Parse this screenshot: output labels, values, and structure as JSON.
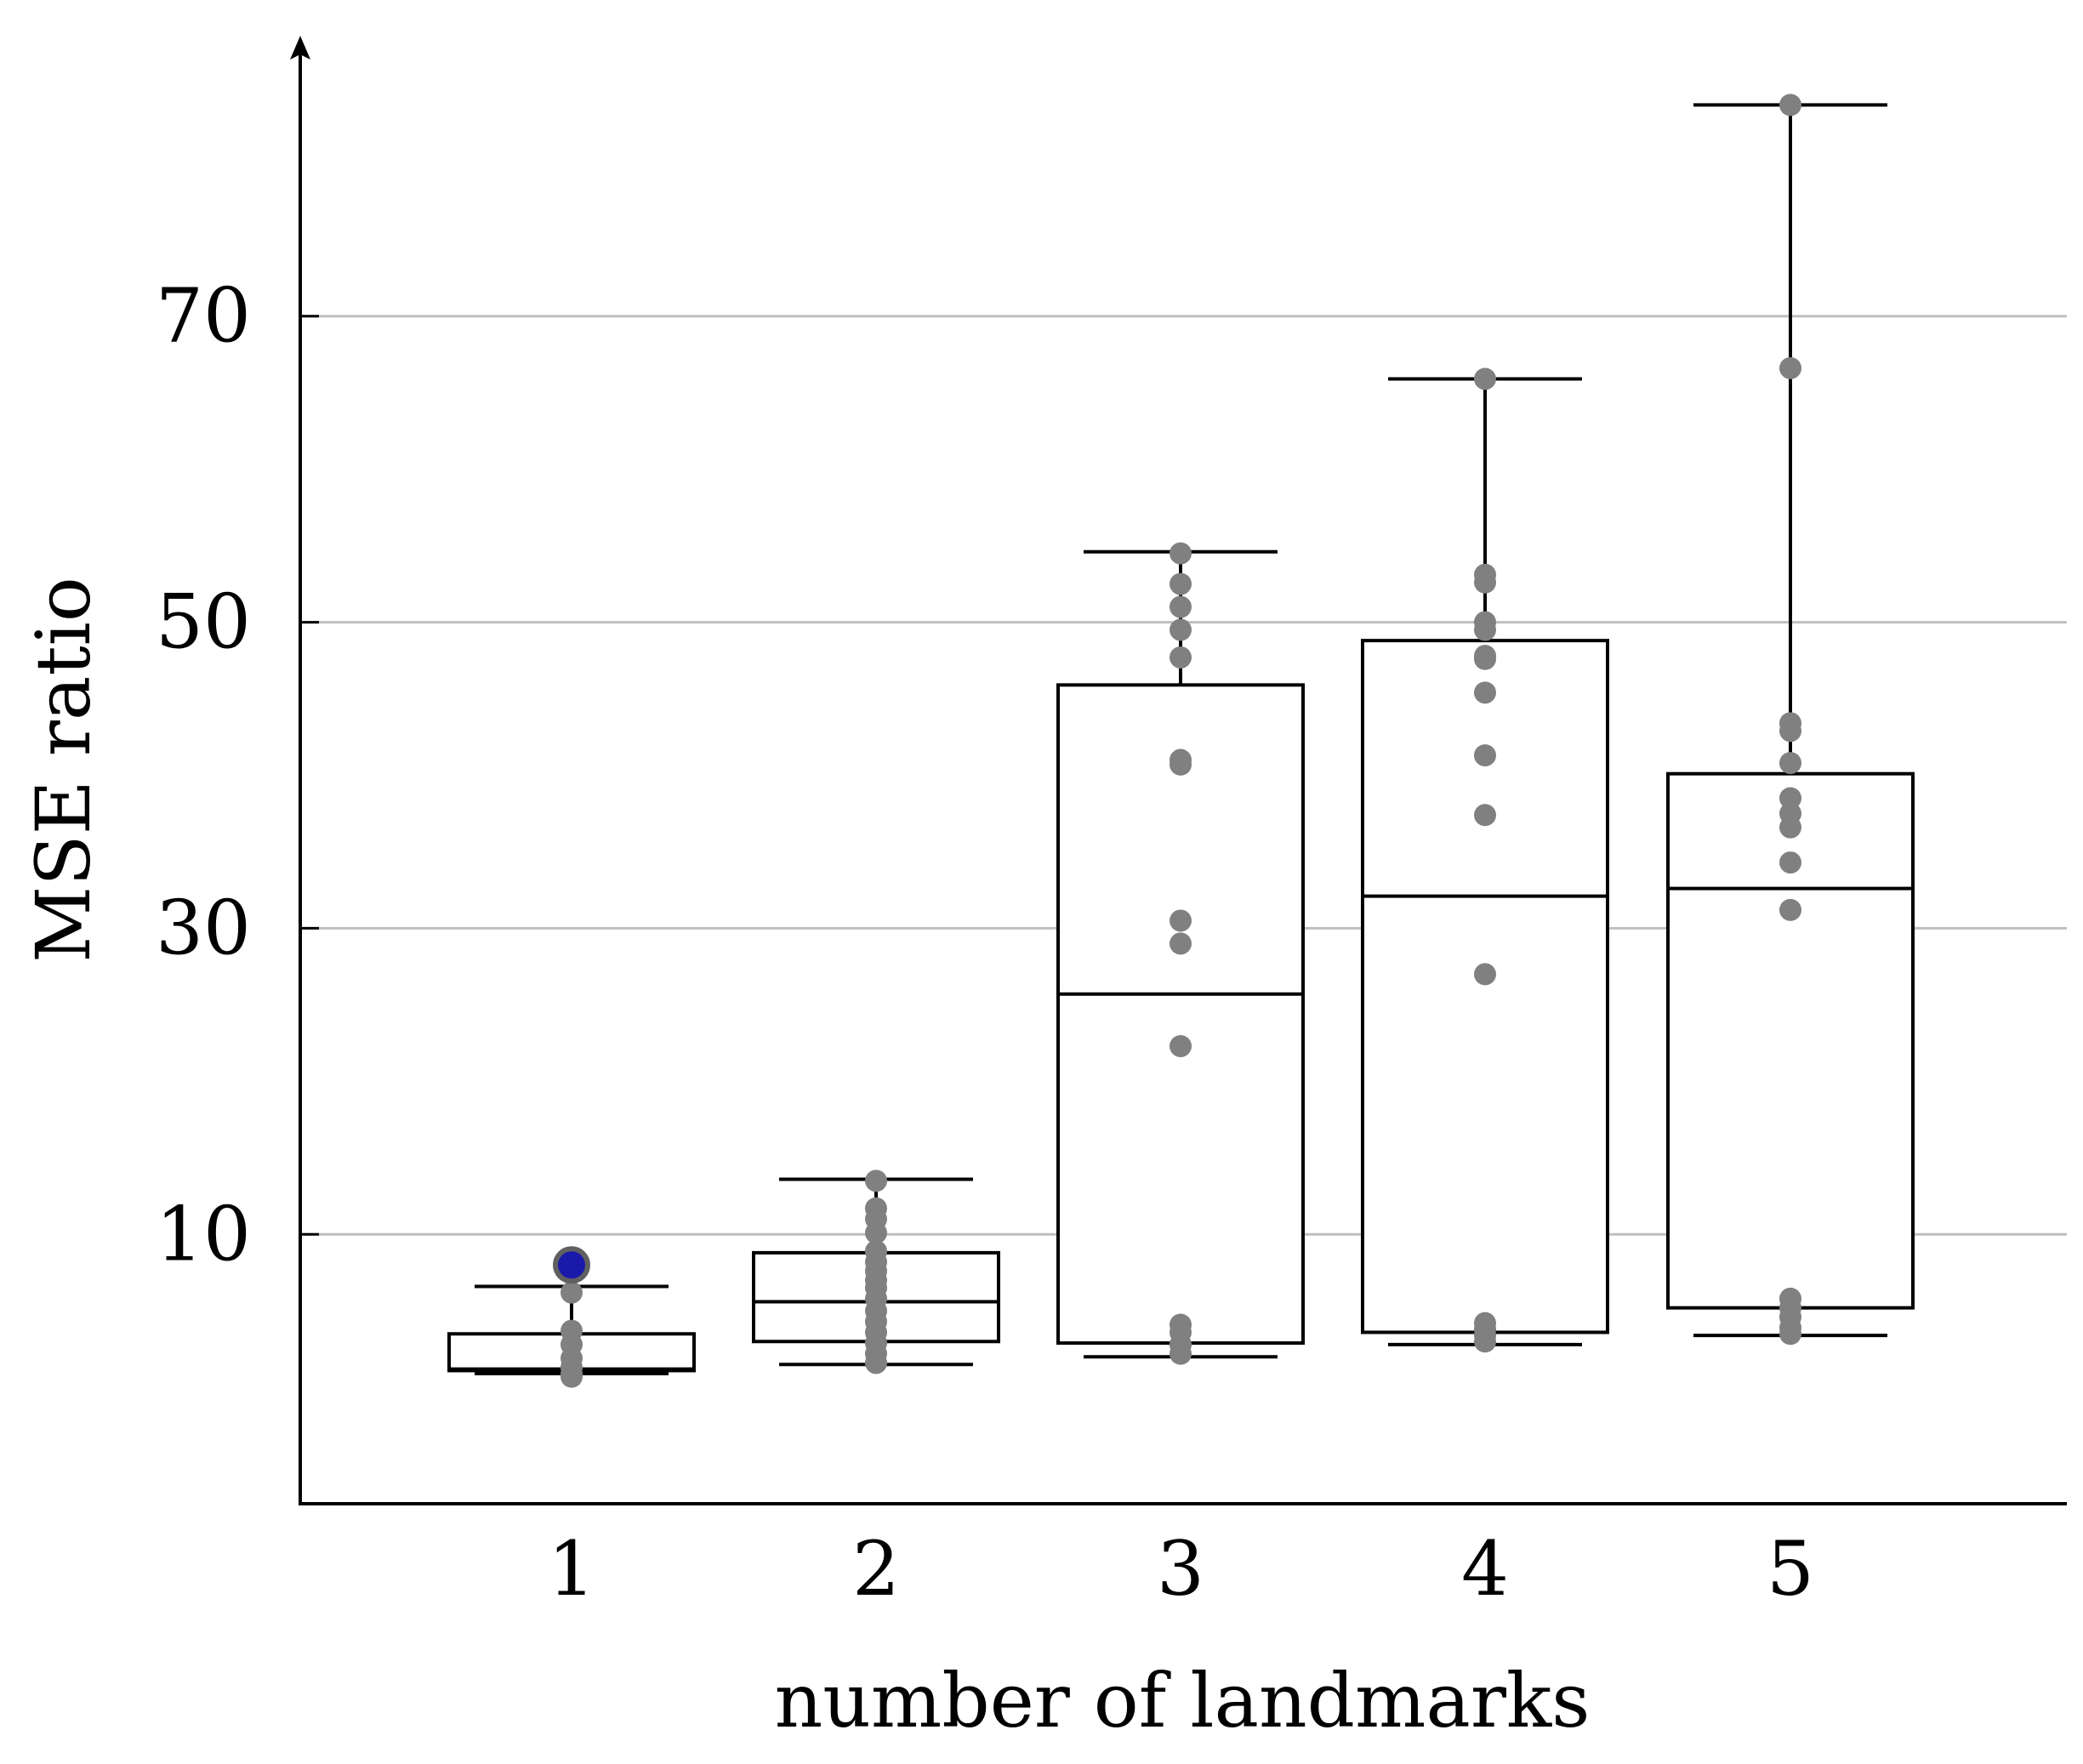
{
  "chart_data": {
    "type": "box",
    "xlabel": "number of landmarks",
    "ylabel": "MSE ratio",
    "categories": [
      "1",
      "2",
      "3",
      "4",
      "5"
    ],
    "yticks": [
      10,
      30,
      50,
      70
    ],
    "ylim": [
      -7.6,
      87.6
    ],
    "grid": true,
    "boxes": [
      {
        "category": "1",
        "whisker_low": 0.9,
        "q1": 1.1,
        "median": 1.2,
        "q3": 3.5,
        "whisker_high": 6.6,
        "points": [
          8.0,
          7.8,
          7.5,
          6.2,
          3.7,
          2.8,
          1.9,
          1.3,
          0.9,
          0.7
        ]
      },
      {
        "category": "2",
        "whisker_low": 1.5,
        "q1": 3.0,
        "median": 5.6,
        "q3": 8.8,
        "whisker_high": 13.6,
        "points": [
          13.5,
          11.7,
          11.0,
          10.1,
          8.9,
          8.2,
          7.6,
          7.0,
          6.5,
          5.8,
          5.0,
          4.3,
          3.6,
          2.9,
          2.2,
          1.6
        ]
      },
      {
        "category": "3",
        "whisker_low": 2.0,
        "q1": 2.9,
        "median": 25.7,
        "q3": 45.9,
        "whisker_high": 54.6,
        "points": [
          54.5,
          52.5,
          51.0,
          49.5,
          47.7,
          41.0,
          40.7,
          30.5,
          29.0,
          22.3,
          4.1,
          3.6,
          2.8,
          2.2
        ]
      },
      {
        "category": "4",
        "whisker_low": 2.8,
        "q1": 3.6,
        "median": 32.1,
        "q3": 48.8,
        "whisker_high": 65.9,
        "points": [
          65.9,
          53.1,
          52.6,
          50.0,
          49.5,
          47.8,
          47.6,
          45.4,
          41.3,
          37.4,
          27.0,
          4.2,
          3.8,
          3.4,
          3.0
        ]
      },
      {
        "category": "5",
        "whisker_low": 3.4,
        "q1": 5.2,
        "median": 32.6,
        "q3": 40.1,
        "whisker_high": 83.8,
        "points": [
          83.8,
          66.6,
          43.4,
          42.9,
          40.8,
          38.5,
          37.5,
          36.6,
          34.3,
          31.2,
          5.8,
          5.2,
          4.6,
          3.9,
          3.5
        ]
      }
    ],
    "highlight": {
      "category": "1",
      "value": 8.0,
      "color": "#1a1aaa"
    },
    "colors": {
      "points": "#808080",
      "grid": "#bfbfbf",
      "box": "#000000"
    }
  }
}
